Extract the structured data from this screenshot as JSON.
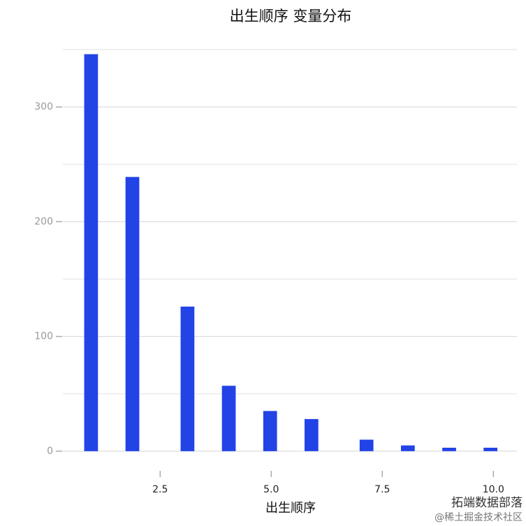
{
  "chart_data": {
    "type": "histogram",
    "title": "出生顺序 变量分布",
    "x_label": "出生顺序",
    "bins": [
      0.79,
      1.1,
      1.41,
      1.72,
      2.03,
      2.34,
      2.65,
      2.96,
      3.27,
      3.58,
      3.89,
      4.2,
      4.51,
      4.82,
      5.13,
      5.44,
      5.75,
      6.06,
      6.37,
      6.68,
      6.99,
      7.3,
      7.61,
      7.92,
      8.23,
      8.54,
      8.85,
      9.16,
      9.47,
      9.78,
      10.09
    ],
    "values": [
      346,
      0,
      0,
      239,
      0,
      0,
      0,
      126,
      0,
      0,
      57,
      0,
      0,
      35,
      0,
      0,
      28,
      0,
      0,
      0,
      10,
      0,
      0,
      5,
      0,
      0,
      3,
      0,
      0,
      3
    ],
    "color": "#2243e6",
    "xlim": [
      0.31,
      10.53
    ],
    "xticks": [
      2.5,
      {
        "value": 5,
        "label": "5.0"
      },
      7.5,
      {
        "value": 10,
        "label": "10.0"
      }
    ],
    "ylim": [
      -8,
      350
    ],
    "yticks": [
      0,
      100,
      200,
      300
    ],
    "minor_yticks": [
      50,
      150,
      250,
      350
    ],
    "grid": true,
    "watermark": [
      "拓端数据部落",
      "@稀土掘金技术社区"
    ]
  }
}
